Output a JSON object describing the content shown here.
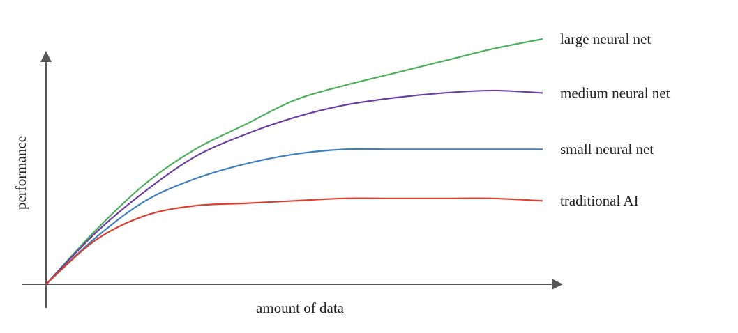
{
  "chart_data": {
    "type": "line",
    "x_label": "amount of data",
    "y_label": "performance",
    "x": [
      0,
      10,
      20,
      30,
      40,
      50,
      60,
      70,
      80,
      90,
      100
    ],
    "xlim": [
      0,
      100
    ],
    "ylim": [
      0,
      100
    ],
    "series": [
      {
        "name": "large neural net",
        "color": "#4caf5c",
        "values": [
          0,
          22,
          41,
          55,
          65,
          75,
          81,
          86,
          91,
          96,
          100
        ]
      },
      {
        "name": "medium neural net",
        "color": "#6a3fa0",
        "values": [
          0,
          21,
          38,
          52,
          61,
          68,
          73,
          76,
          78,
          79,
          78
        ]
      },
      {
        "name": "small neural net",
        "color": "#3d7fc0",
        "values": [
          0,
          19,
          34,
          43,
          49,
          53,
          55,
          55,
          55,
          55,
          55
        ]
      },
      {
        "name": "traditional AI",
        "color": "#d9402f",
        "values": [
          0,
          18,
          28,
          32,
          33,
          34,
          35,
          35,
          35,
          35,
          34
        ]
      }
    ]
  }
}
